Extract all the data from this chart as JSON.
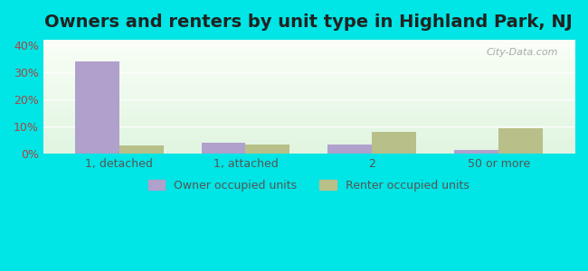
{
  "title": "Owners and renters by unit type in Highland Park, NJ",
  "categories": [
    "1, detached",
    "1, attached",
    "2",
    "50 or more"
  ],
  "owner_values": [
    34.0,
    4.0,
    3.5,
    1.5
  ],
  "renter_values": [
    3.0,
    3.5,
    8.0,
    9.5
  ],
  "owner_color": "#b0a0cc",
  "renter_color": "#b8bf88",
  "background_color": "#00e5e5",
  "ylim": [
    0,
    42
  ],
  "yticks": [
    0,
    10,
    20,
    30,
    40
  ],
  "ytick_labels": [
    "0%",
    "10%",
    "20%",
    "30%",
    "40%"
  ],
  "bar_width": 0.35,
  "title_fontsize": 14,
  "tick_fontsize": 9,
  "legend_fontsize": 9,
  "watermark": "City-Data.com",
  "owner_label": "Owner occupied units",
  "renter_label": "Renter occupied units"
}
